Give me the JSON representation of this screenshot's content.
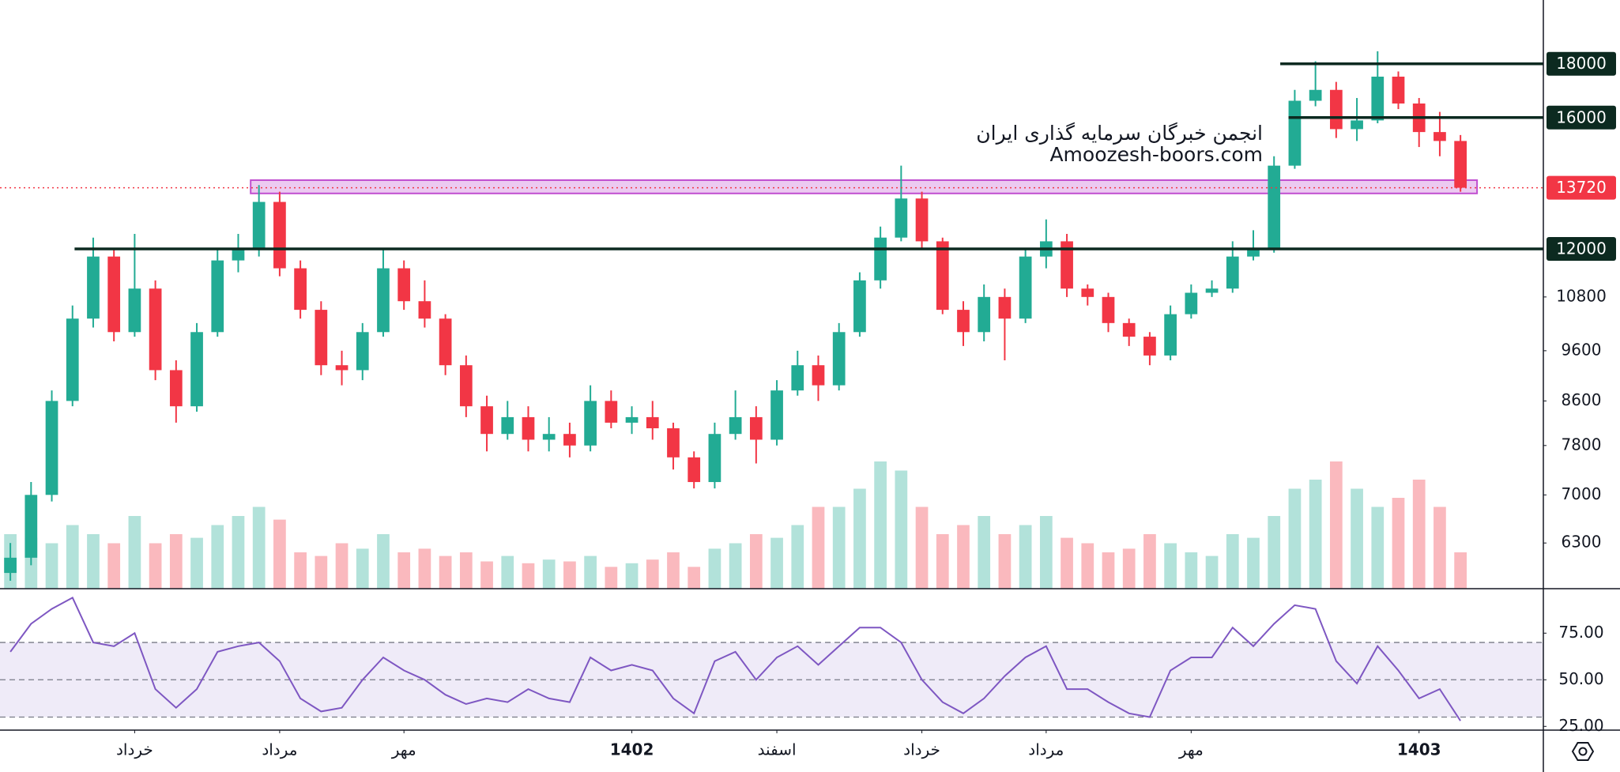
{
  "chart_data": {
    "type": "candlestick",
    "annotations": [
      "انجمن خبرگان سرمایه گذاری ایران",
      "Amoozesh-boors.com"
    ],
    "xlim": [
      -0.5,
      74
    ],
    "xticks": [
      {
        "value": 6,
        "label": "خرداد"
      },
      {
        "value": 13,
        "label": "مرداد"
      },
      {
        "value": 19,
        "label": "مهر"
      },
      {
        "value": 30,
        "label": "1402"
      },
      {
        "value": 37,
        "label": "اسفند"
      },
      {
        "value": 44,
        "label": "خرداد"
      },
      {
        "value": 50,
        "label": "مرداد"
      },
      {
        "value": 57,
        "label": "مهر"
      },
      {
        "value": 68,
        "label": "1403"
      }
    ],
    "ylim": [
      5700,
      20700
    ],
    "log_scale": true,
    "yticks": [
      10800,
      9600,
      8600,
      7800,
      7000,
      6300
    ],
    "up_color": "#22ab94",
    "down_color": "#f23645",
    "open": [
      5900,
      6100,
      7000,
      8600,
      10300,
      11800,
      10000,
      11000,
      9200,
      8500,
      10000,
      11700,
      12000,
      13300,
      11500,
      10500,
      9300,
      9200,
      10000,
      11500,
      10700,
      10300,
      9300,
      8500,
      8000,
      8300,
      7900,
      8000,
      7800,
      8600,
      8200,
      8300,
      8100,
      7600,
      7200,
      8000,
      8300,
      7900,
      8800,
      9300,
      8900,
      10000,
      11200,
      12300,
      13400,
      12200,
      10500,
      10000,
      10800,
      10300,
      11800,
      12200,
      11000,
      10800,
      10200,
      9900,
      9500,
      10400,
      10900,
      11000,
      11800,
      12000,
      14400,
      16600,
      17000,
      15600,
      15900,
      17500,
      16500,
      15500,
      15200
    ],
    "high": [
      6300,
      7200,
      8800,
      10600,
      12300,
      12000,
      12400,
      11200,
      9400,
      10200,
      12000,
      12400,
      13800,
      13600,
      11700,
      10700,
      9600,
      10200,
      12000,
      11700,
      11200,
      10400,
      9500,
      8700,
      8600,
      8500,
      8300,
      8200,
      8900,
      8800,
      8500,
      8600,
      8200,
      7700,
      8200,
      8800,
      8500,
      9000,
      9600,
      9500,
      10200,
      11400,
      12600,
      14400,
      13600,
      12300,
      10700,
      11100,
      11000,
      12000,
      12800,
      12400,
      11100,
      10900,
      10300,
      10000,
      10600,
      11100,
      11200,
      12200,
      12500,
      14700,
      17000,
      18100,
      17300,
      16700,
      18500,
      17700,
      16700,
      16200,
      15400
    ],
    "low": [
      5800,
      6000,
      6900,
      8500,
      10100,
      9800,
      9900,
      9000,
      8200,
      8400,
      9900,
      11400,
      11800,
      11300,
      10300,
      9100,
      8900,
      9000,
      9900,
      10500,
      10100,
      9100,
      8300,
      7700,
      7900,
      7700,
      7700,
      7600,
      7700,
      8100,
      8000,
      7900,
      7400,
      7100,
      7100,
      7900,
      7500,
      7800,
      8700,
      8600,
      8800,
      9900,
      11000,
      12200,
      12000,
      10400,
      9700,
      9800,
      9400,
      10200,
      11500,
      10800,
      10600,
      10000,
      9700,
      9300,
      9400,
      10300,
      10800,
      10900,
      11700,
      11900,
      14300,
      16400,
      15300,
      15200,
      15800,
      16300,
      15000,
      14700,
      13600
    ],
    "close": [
      6100,
      7000,
      8600,
      10300,
      11800,
      10000,
      11000,
      9200,
      8500,
      10000,
      11700,
      12000,
      13300,
      11500,
      10500,
      9300,
      9200,
      10000,
      11500,
      10700,
      10300,
      9300,
      8500,
      8000,
      8300,
      7900,
      8000,
      7800,
      8600,
      8200,
      8300,
      8100,
      7600,
      7200,
      8000,
      8300,
      7900,
      8800,
      9300,
      8900,
      10000,
      11200,
      12300,
      13400,
      12200,
      10500,
      10000,
      10800,
      10300,
      11800,
      12200,
      11000,
      10800,
      10200,
      9900,
      9500,
      10400,
      10900,
      11000,
      11800,
      12000,
      14400,
      16600,
      17000,
      15600,
      15900,
      17500,
      16500,
      15500,
      15200,
      13720
    ],
    "volume": [
      30,
      28,
      25,
      35,
      30,
      25,
      40,
      25,
      30,
      28,
      35,
      40,
      45,
      38,
      20,
      18,
      25,
      22,
      30,
      20,
      22,
      18,
      20,
      15,
      18,
      14,
      16,
      15,
      18,
      12,
      14,
      16,
      20,
      12,
      22,
      25,
      30,
      28,
      35,
      45,
      45,
      55,
      70,
      65,
      45,
      30,
      35,
      40,
      30,
      35,
      40,
      28,
      25,
      20,
      22,
      30,
      25,
      20,
      18,
      30,
      28,
      40,
      55,
      60,
      70,
      55,
      45,
      50,
      60,
      45,
      20
    ],
    "levels": [
      {
        "value": 18000,
        "x0": 61.3
      },
      {
        "value": 16000,
        "x0": 61.7
      },
      {
        "value": 12000,
        "x0": 3.1
      }
    ],
    "level_color": "#0c2a20",
    "zone": {
      "x": [
        11.6,
        70.8
      ],
      "y": [
        13550,
        13950
      ],
      "color": "#c04fd0"
    },
    "last_price": 13720,
    "rsi": {
      "values": [
        65,
        80,
        88,
        94,
        70,
        68,
        75,
        45,
        35,
        45,
        65,
        68,
        70,
        60,
        40,
        33,
        35,
        50,
        62,
        55,
        50,
        42,
        37,
        40,
        38,
        45,
        40,
        38,
        62,
        55,
        58,
        55,
        40,
        32,
        60,
        65,
        50,
        62,
        68,
        58,
        68,
        78,
        78,
        70,
        50,
        38,
        32,
        40,
        52,
        62,
        68,
        45,
        45,
        38,
        32,
        30,
        55,
        62,
        62,
        78,
        68,
        80,
        90,
        88,
        60,
        48,
        68,
        55,
        40,
        45,
        28
      ],
      "color": "#7e57c2",
      "ylim": [
        23,
        98
      ],
      "yticks": [
        {
          "value": 75,
          "label": "75.00"
        },
        {
          "value": 50,
          "label": "50.00"
        },
        {
          "value": 25,
          "label": "25.00"
        }
      ],
      "bands": [
        70,
        50,
        30
      ]
    }
  }
}
